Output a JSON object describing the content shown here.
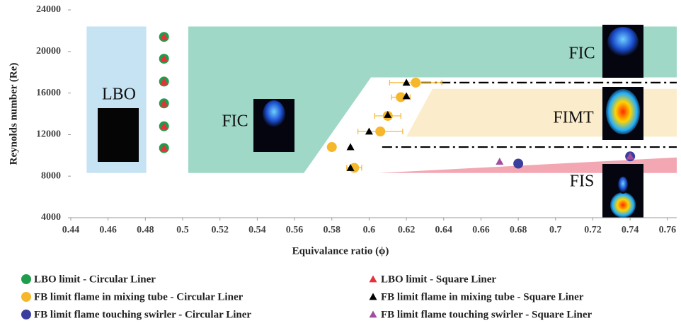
{
  "chart_data": {
    "type": "scatter",
    "x_label": "Equivalance ratio (ϕ)",
    "y_label": "Reynolds number (Re)",
    "xlim": [
      0.44,
      0.765
    ],
    "ylim": [
      4000,
      24000
    ],
    "xticks": [
      0.44,
      0.46,
      0.48,
      0.5,
      0.52,
      0.54,
      0.56,
      0.58,
      0.6,
      0.62,
      0.64,
      0.66,
      0.68,
      0.7,
      0.72,
      0.74,
      0.76
    ],
    "yticks": [
      4000,
      8000,
      12000,
      16000,
      20000,
      24000
    ],
    "regions": [
      {
        "labels": [
          "LBO"
        ],
        "color": "#c5e3f3",
        "x": [
          0.4485,
          0.4805,
          0.4805,
          0.4485
        ],
        "y": [
          22400,
          22400,
          8300,
          8300
        ]
      },
      {
        "labels": [
          "FIC",
          "FIC"
        ],
        "color": "#9fd8c6",
        "x": [
          0.503,
          0.765,
          0.765,
          0.601,
          0.565,
          0.503
        ],
        "y": [
          22400,
          22400,
          17500,
          17500,
          8300,
          8300
        ]
      },
      {
        "labels": [
          "FIMT"
        ],
        "color": "#fbeccb",
        "x": [
          0.62,
          0.634,
          0.765,
          0.765
        ],
        "y": [
          11800,
          16400,
          16400,
          11800
        ]
      },
      {
        "labels": [
          "FIS"
        ],
        "color": "#f3a7b3",
        "x": [
          0.605,
          0.765,
          0.765
        ],
        "y": [
          8300,
          9800,
          8300
        ]
      }
    ],
    "hlines": [
      {
        "y": 17000,
        "x": [
          0.628,
          0.765
        ]
      },
      {
        "y": 10800,
        "x": [
          0.607,
          0.765
        ]
      }
    ],
    "series": [
      {
        "name": "LBO limit - Circular Liner",
        "color": "#1e9e4a",
        "marker": "circle",
        "x": [
          0.49,
          0.49,
          0.49,
          0.49,
          0.49,
          0.49
        ],
        "y": [
          21400,
          19300,
          17100,
          15000,
          12800,
          10700
        ]
      },
      {
        "name": "LBO limit - Square Liner",
        "color": "#e8303a",
        "marker": "triangle",
        "x": [
          0.49,
          0.49,
          0.49,
          0.49,
          0.49,
          0.49
        ],
        "y": [
          21400,
          19300,
          17100,
          15000,
          12800,
          10700
        ]
      },
      {
        "name": "FB limit flame in mixing tube - Circular Liner",
        "color": "#f7b72a",
        "marker": "circle",
        "x": [
          0.625,
          0.617,
          0.61,
          0.606,
          0.58,
          0.592
        ],
        "y": [
          17000,
          15600,
          13800,
          12300,
          10800,
          8800
        ],
        "xerr": [
          0.014,
          0.005,
          0.007,
          0.012,
          null,
          0.004
        ]
      },
      {
        "name": "FB limit flame in mixing tube - Square Liner",
        "color": "#000000",
        "marker": "triangle",
        "x": [
          0.62,
          0.62,
          0.61,
          0.6,
          0.59,
          0.59
        ],
        "y": [
          17000,
          15700,
          13900,
          12300,
          10800,
          8800
        ]
      },
      {
        "name": "FB limit flame touching swirler - Circular Liner",
        "color": "#3a3f9e",
        "marker": "circle",
        "x": [
          0.68,
          0.74
        ],
        "y": [
          9200,
          9900
        ]
      },
      {
        "name": "FB limit flame touching swirler - Square Liner",
        "color": "#a34da0",
        "marker": "triangle",
        "x": [
          0.67,
          0.74
        ],
        "y": [
          9400,
          9900
        ]
      }
    ]
  }
}
